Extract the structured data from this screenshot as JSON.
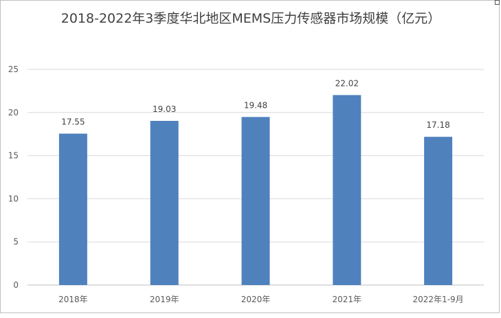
{
  "chart_data": {
    "type": "bar",
    "title": "2018-2022年3季度华北地区MEMS压力传感器市场规模（亿元）",
    "categories": [
      "2018年",
      "2019年",
      "2020年",
      "2021年",
      "2022年1-9月"
    ],
    "series": [
      {
        "values": [
          17.55,
          19.03,
          19.48,
          22.02,
          17.18
        ]
      }
    ],
    "data_labels": [
      "17.55",
      "19.03",
      "19.48",
      "22.02",
      "17.18"
    ],
    "y_ticks": [
      "0",
      "5",
      "10",
      "15",
      "20",
      "25"
    ],
    "ylim": [
      0,
      25
    ],
    "grid": true,
    "legend": "none",
    "bar_color": "#4f81bd",
    "grid_color": "#d9d9d9"
  }
}
